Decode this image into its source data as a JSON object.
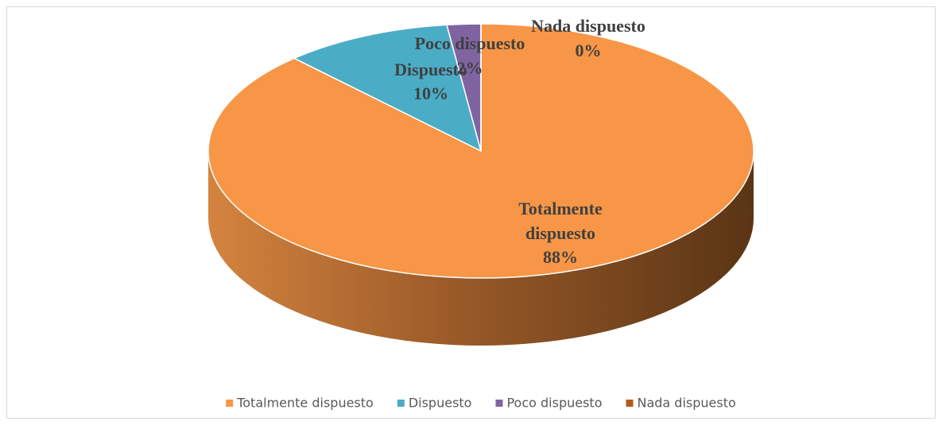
{
  "chart_data": {
    "type": "pie",
    "categories": [
      "Totalmente dispuesto",
      "Dispuesto",
      "Poco dispuesto",
      "Nada dispuesto"
    ],
    "values": [
      88,
      10,
      2,
      0
    ],
    "value_labels": [
      "88%",
      "10%",
      "2%",
      "0%"
    ],
    "colors": [
      "#f79646",
      "#4bacc6",
      "#8064a2",
      "#b35c1e"
    ],
    "legend": "bottom"
  }
}
